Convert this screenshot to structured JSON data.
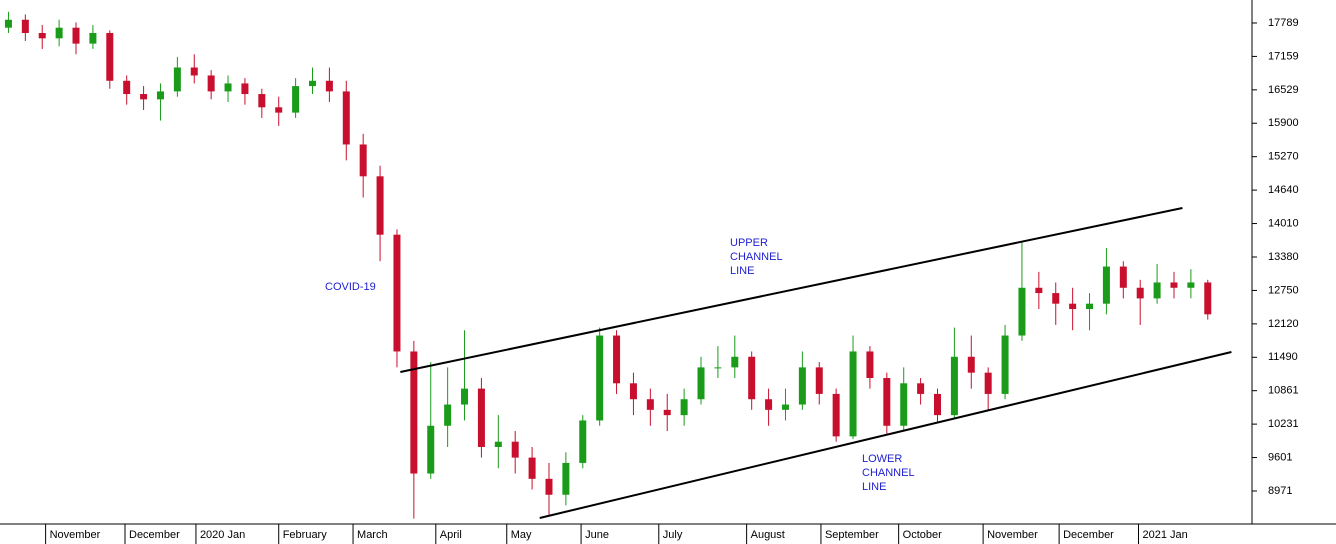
{
  "chart_data": {
    "type": "candlestick",
    "up_color": "#1a9c1a",
    "down_color": "#c8102e",
    "xlim": [
      -0.5,
      73.5
    ],
    "xticks": [
      {
        "value": 2.2,
        "label": "November"
      },
      {
        "value": 6.9,
        "label": "December"
      },
      {
        "value": 11.1,
        "label": "2020 Jan"
      },
      {
        "value": 16.0,
        "label": "February"
      },
      {
        "value": 20.4,
        "label": "March"
      },
      {
        "value": 25.3,
        "label": "April"
      },
      {
        "value": 29.5,
        "label": "May"
      },
      {
        "value": 33.9,
        "label": "June"
      },
      {
        "value": 38.5,
        "label": "July"
      },
      {
        "value": 43.7,
        "label": "August"
      },
      {
        "value": 48.1,
        "label": "September"
      },
      {
        "value": 52.7,
        "label": "October"
      },
      {
        "value": 57.7,
        "label": "November"
      },
      {
        "value": 62.2,
        "label": "December"
      },
      {
        "value": 66.9,
        "label": "2021 Jan"
      }
    ],
    "ylim": [
      8349,
      18222
    ],
    "yticks": [
      17789,
      17159,
      16529,
      15900,
      15270,
      14640,
      14010,
      13380,
      12750,
      12120,
      11490,
      10861,
      10231,
      9601,
      8971
    ],
    "open": [
      17700,
      17850,
      17600,
      17500,
      17700,
      17400,
      17600,
      16700,
      16450,
      16350,
      16500,
      16950,
      16800,
      16500,
      16650,
      16450,
      16200,
      16100,
      16600,
      16700,
      16500,
      15500,
      14900,
      13800,
      11600,
      9300,
      10200,
      10600,
      10900,
      9800,
      9900,
      9600,
      9200,
      8900,
      9500,
      10300,
      11900,
      11000,
      10700,
      10500,
      10400,
      10700,
      11300,
      11300,
      11500,
      10700,
      10500,
      10600,
      11300,
      10800,
      10000,
      11600,
      11100,
      10200,
      11000,
      10800,
      10400,
      11500,
      11200,
      10800,
      11900,
      12800,
      12700,
      12500,
      12400,
      12500,
      13200,
      12800,
      12600,
      12900,
      12800,
      12900
    ],
    "high": [
      18000,
      17950,
      17750,
      17850,
      17800,
      17750,
      17650,
      16800,
      16600,
      16650,
      17150,
      17200,
      16900,
      16800,
      16750,
      16550,
      16400,
      16750,
      16950,
      16950,
      16700,
      15700,
      15100,
      13900,
      11800,
      11400,
      11300,
      12000,
      11100,
      10400,
      10100,
      9800,
      9500,
      9700,
      10400,
      12050,
      12000,
      11200,
      10900,
      10800,
      10900,
      11500,
      11700,
      11900,
      11600,
      10900,
      10900,
      11600,
      11400,
      10900,
      11900,
      11700,
      11200,
      11300,
      11100,
      10900,
      12050,
      11900,
      11300,
      12100,
      13650,
      13100,
      12900,
      12800,
      12700,
      13550,
      13300,
      12950,
      13250,
      13100,
      13150,
      12950
    ],
    "low": [
      17600,
      17450,
      17300,
      17350,
      17200,
      17300,
      16550,
      16250,
      16150,
      15950,
      16400,
      16650,
      16350,
      16300,
      16250,
      16000,
      15850,
      16000,
      16450,
      16300,
      15200,
      14500,
      13300,
      11300,
      8450,
      9200,
      9800,
      10300,
      9600,
      9400,
      9300,
      9000,
      8500,
      8700,
      9400,
      10200,
      10800,
      10400,
      10200,
      10100,
      10200,
      10600,
      11100,
      11100,
      10500,
      10200,
      10300,
      10500,
      10600,
      9900,
      9950,
      10900,
      10050,
      10100,
      10600,
      10250,
      10350,
      10900,
      10500,
      10700,
      11800,
      12400,
      12100,
      12000,
      12000,
      12300,
      12600,
      12100,
      12500,
      12600,
      12600,
      12200
    ],
    "close": [
      17850,
      17600,
      17500,
      17700,
      17400,
      17600,
      16700,
      16450,
      16350,
      16500,
      16950,
      16800,
      16500,
      16650,
      16450,
      16200,
      16100,
      16600,
      16700,
      16500,
      15500,
      14900,
      13800,
      11600,
      9300,
      10200,
      10600,
      10900,
      9800,
      9900,
      9600,
      9200,
      8900,
      9500,
      10300,
      11900,
      11000,
      10700,
      10500,
      10400,
      10700,
      11300,
      11300,
      11500,
      10700,
      10500,
      10600,
      11300,
      10800,
      10000,
      11600,
      11100,
      10200,
      11000,
      10800,
      10400,
      11500,
      11200,
      10800,
      11900,
      12800,
      12700,
      12500,
      12400,
      12500,
      13200,
      12800,
      12600,
      12900,
      12800,
      12900,
      12300
    ],
    "trendlines": [
      {
        "x": [
          23.2,
          69.5
        ],
        "y": [
          11213,
          14303
        ]
      },
      {
        "x": [
          31.45,
          72.4
        ],
        "y": [
          8462,
          11590
        ]
      }
    ],
    "annotations": [
      [
        "COVID-19"
      ],
      [
        "UPPER",
        "CHANNEL",
        "LINE"
      ],
      [
        "LOWER",
        "CHANNEL",
        "LINE"
      ]
    ]
  }
}
